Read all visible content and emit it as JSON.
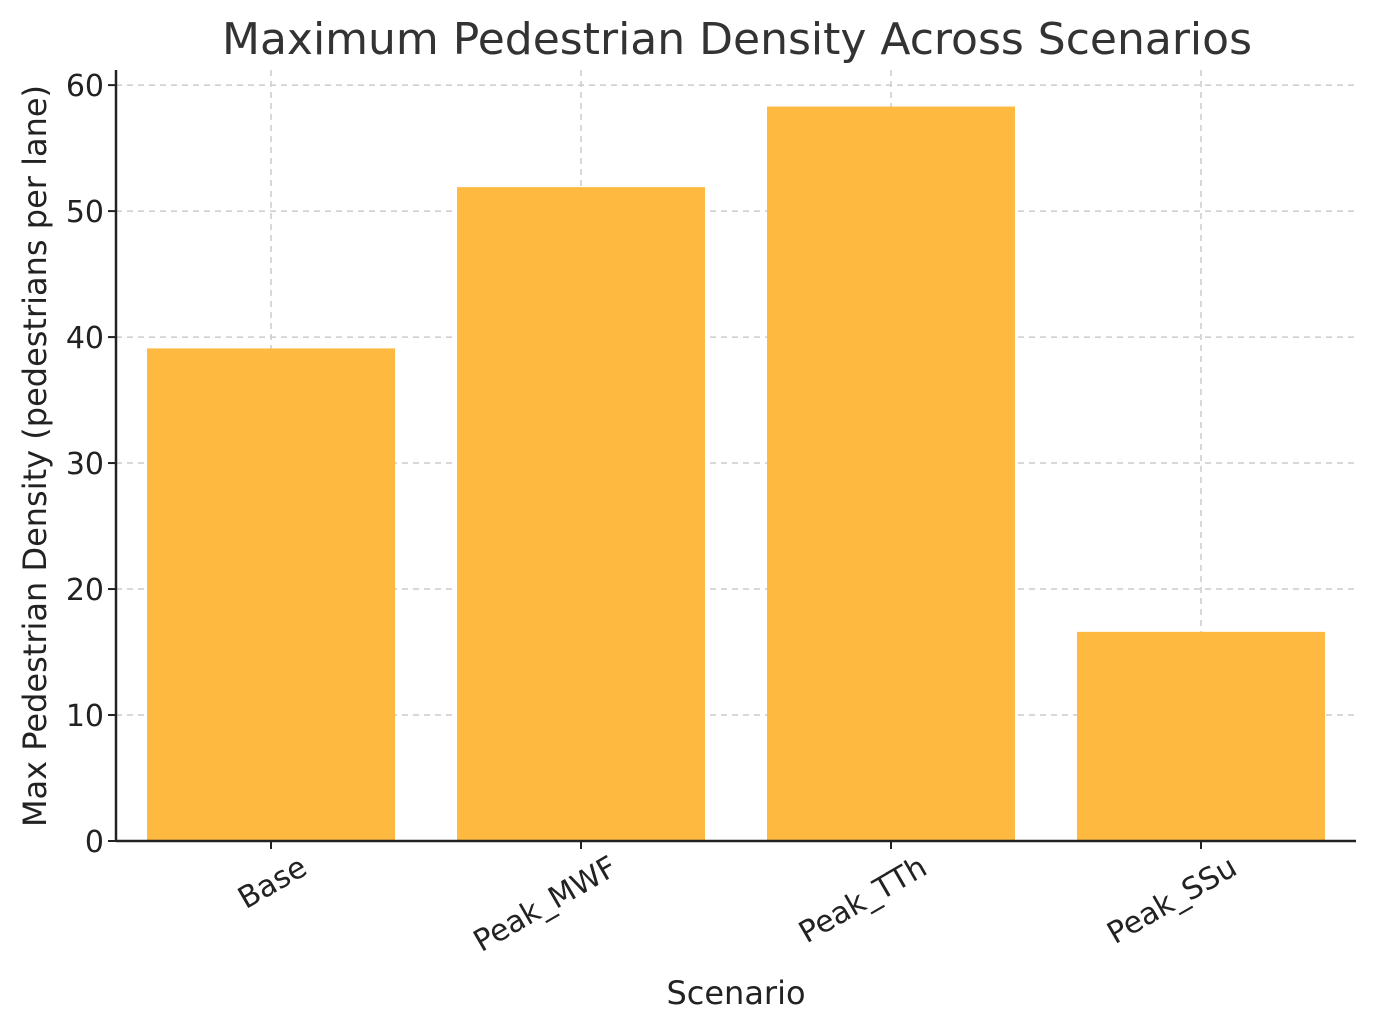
{
  "chart_data": {
    "type": "bar",
    "title": "Maximum Pedestrian Density Across Scenarios",
    "xlabel": "Scenario",
    "ylabel": "Max Pedestrian Density (pedestrians per lane)",
    "categories": [
      "Base",
      "Peak_MWF",
      "Peak_TTh",
      "Peak_SSu"
    ],
    "values": [
      39.1,
      51.9,
      58.3,
      16.6
    ],
    "ylim": [
      0,
      61.2
    ],
    "yticks": [
      0,
      10,
      20,
      30,
      40,
      50,
      60
    ],
    "grid": true,
    "bar_color": "#FDB940",
    "x_tick_rotation": "30 degrees",
    "legend": "none"
  }
}
